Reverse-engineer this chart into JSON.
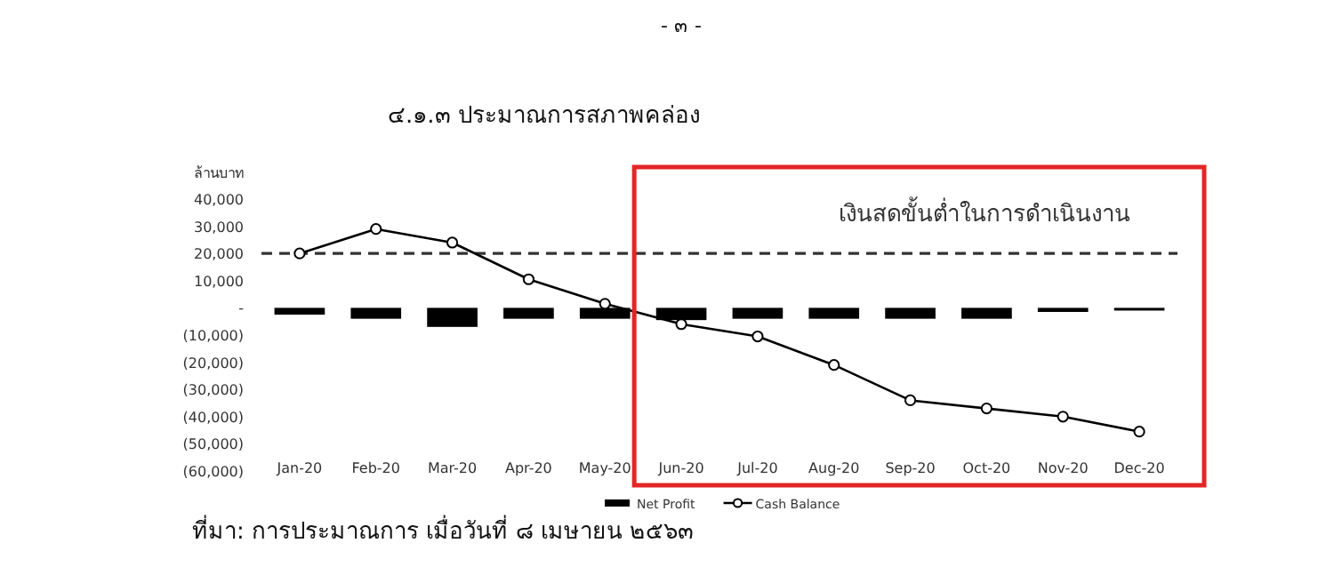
{
  "chart_data": {
    "type": "bar",
    "title": "๔.๑.๓  ประมาณการสภาพคล่อง",
    "ylabel": "ล้านบาท",
    "annotations": [
      "- ๓ -",
      "ที่มา: การประมาณการ เมื่อวันที่ ๘ เมษายน ๒๕๖๓"
    ],
    "categories": [
      "Jan-20",
      "Feb-20",
      "Mar-20",
      "Apr-20",
      "May-20",
      "Jun-20",
      "Jul-20",
      "Aug-20",
      "Sep-20",
      "Oct-20",
      "Nov-20",
      "Dec-20"
    ],
    "series": [
      {
        "name": "Net Profit",
        "color": "#000000",
        "values": [
          -2500,
          -4000,
          -7000,
          -4000,
          -4000,
          -4500,
          -4000,
          -4000,
          -4000,
          -4000,
          -1500,
          -1000
        ]
      },
      {
        "name": "Cash Balance",
        "type": "line",
        "color": "#000000",
        "marker": "circle",
        "line_style": "solid",
        "values": [
          20000,
          29000,
          24000,
          10500,
          1500,
          -6000,
          -10500,
          -21000,
          -34000,
          -37000,
          -40000,
          -45500
        ]
      }
    ],
    "ylim": [
      -60000,
      40000
    ],
    "yticks": [
      {
        "value": 40000,
        "label": "40,000"
      },
      {
        "value": 30000,
        "label": "30,000"
      },
      {
        "value": 20000,
        "label": "20,000"
      },
      {
        "value": 10000,
        "label": "10,000"
      },
      {
        "value": 0,
        "label": "-"
      },
      {
        "value": -10000,
        "label": "(10,000)"
      },
      {
        "value": -20000,
        "label": "(20,000)"
      },
      {
        "value": -30000,
        "label": "(30,000)"
      },
      {
        "value": -40000,
        "label": "(40,000)"
      },
      {
        "value": -50000,
        "label": "(50,000)"
      },
      {
        "value": -60000,
        "label": "(60,000)"
      }
    ],
    "ref_lines": [
      {
        "axis": "y",
        "value": 20000,
        "label": "เงินสดขั้นต่ำในการดำเนินงาน",
        "color": "#333333",
        "line_style": "dashed"
      }
    ],
    "grid": false,
    "legend": "bottom"
  }
}
